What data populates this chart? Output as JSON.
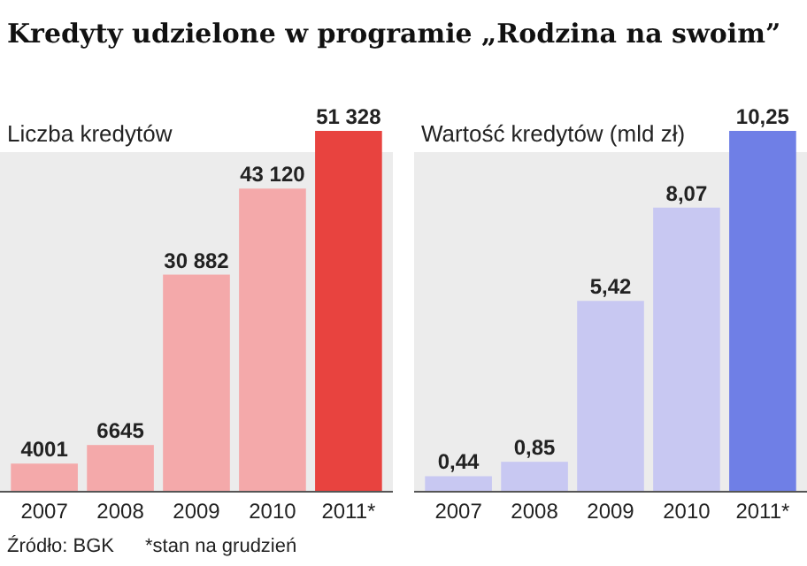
{
  "chart_data": [
    {
      "type": "bar",
      "title": "Kredyty udzielone w programie „Rodzina na swoim”",
      "subtitle": "Liczba kredytów",
      "categories": [
        "2007",
        "2008",
        "2009",
        "2010",
        "2011*"
      ],
      "values": [
        4001,
        6645,
        30882,
        43120,
        51328
      ],
      "value_labels": [
        "4001",
        "6645",
        "30 882",
        "43 120",
        "51 328"
      ],
      "colors": [
        "#f4a9aa",
        "#f4a9aa",
        "#f4a9aa",
        "#f4a9aa",
        "#e8433f"
      ],
      "annotations": [
        "Źródło: BGK",
        "*stan na grudzień"
      ]
    },
    {
      "type": "bar",
      "title": "Wartość kredytów (mld zł)",
      "categories": [
        "2007",
        "2008",
        "2009",
        "2010",
        "2011*"
      ],
      "values": [
        0.44,
        0.85,
        5.42,
        8.07,
        10.25
      ],
      "value_labels": [
        "0,44",
        "0,85",
        "5,42",
        "8,07",
        "10,25"
      ],
      "colors": [
        "#c8c8f2",
        "#c8c8f2",
        "#c8c8f2",
        "#c8c8f2",
        "#6f7fe6"
      ]
    }
  ]
}
